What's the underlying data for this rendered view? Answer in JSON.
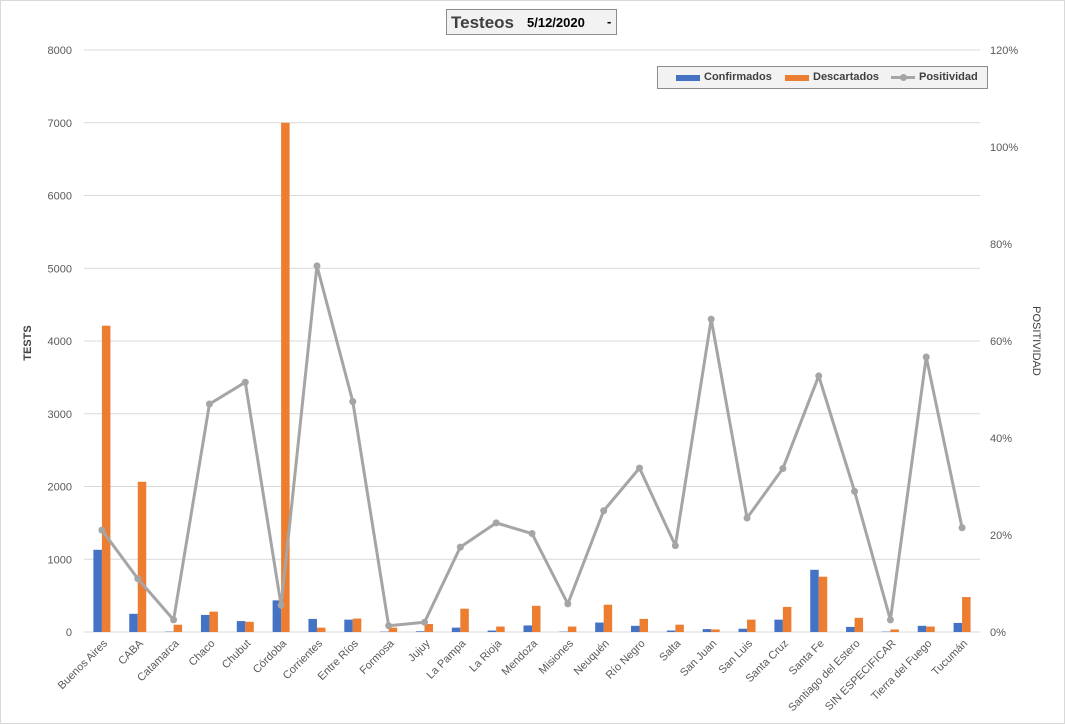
{
  "title": "Testeos",
  "date_filter": "5/12/2020",
  "dropdown_glyph": "-",
  "colors": {
    "confirmados": "#4472c4",
    "descartados": "#ed7d31",
    "positividad": "#a5a5a5",
    "grid": "#d9d9d9"
  },
  "chart_data": {
    "type": "bar",
    "categories": [
      "Buenos Aires",
      "CABA",
      "Catamarca",
      "Chaco",
      "Chubut",
      "Córdoba",
      "Corrientes",
      "Entre Ríos",
      "Formosa",
      "Jujuy",
      "La Pampa",
      "La Rioja",
      "Mendoza",
      "Misiones",
      "Neuquén",
      "Río Negro",
      "Salta",
      "San Juan",
      "San Luis",
      "Santa Cruz",
      "Santa Fe",
      "Santiago del Estero",
      "SIN ESPECIFICAR",
      "Tierra del Fuego",
      "Tucumán"
    ],
    "series": [
      {
        "name": "Confirmados",
        "type": "bar",
        "axis": "left",
        "values": [
          1130,
          250,
          5,
          235,
          150,
          435,
          180,
          170,
          5,
          10,
          60,
          20,
          90,
          5,
          130,
          85,
          20,
          40,
          45,
          170,
          855,
          70,
          5,
          85,
          125
        ]
      },
      {
        "name": "Descartados",
        "type": "bar",
        "axis": "left",
        "values": [
          4210,
          2065,
          100,
          280,
          140,
          7000,
          60,
          185,
          60,
          110,
          320,
          75,
          360,
          75,
          375,
          180,
          100,
          35,
          170,
          345,
          760,
          195,
          35,
          75,
          480
        ]
      },
      {
        "name": "Positividad",
        "type": "line",
        "axis": "right",
        "values": [
          0.21,
          0.11,
          0.025,
          0.47,
          0.515,
          0.055,
          0.755,
          0.475,
          0.013,
          0.02,
          0.175,
          0.225,
          0.203,
          0.058,
          0.25,
          0.338,
          0.178,
          0.645,
          0.235,
          0.337,
          0.528,
          0.29,
          0.025,
          0.567,
          0.215
        ]
      }
    ],
    "ylabel": "TESTS",
    "y2label": "POSITIVIDAD",
    "ylim": [
      0,
      8000
    ],
    "y2lim": [
      0,
      1.2
    ],
    "yticks": [
      "0",
      "1000",
      "2000",
      "3000",
      "4000",
      "5000",
      "6000",
      "7000",
      "8000"
    ],
    "y2ticks": [
      "0%",
      "20%",
      "40%",
      "60%",
      "80%",
      "100%",
      "120%"
    ],
    "grid": true,
    "legend_position": "top-right"
  }
}
